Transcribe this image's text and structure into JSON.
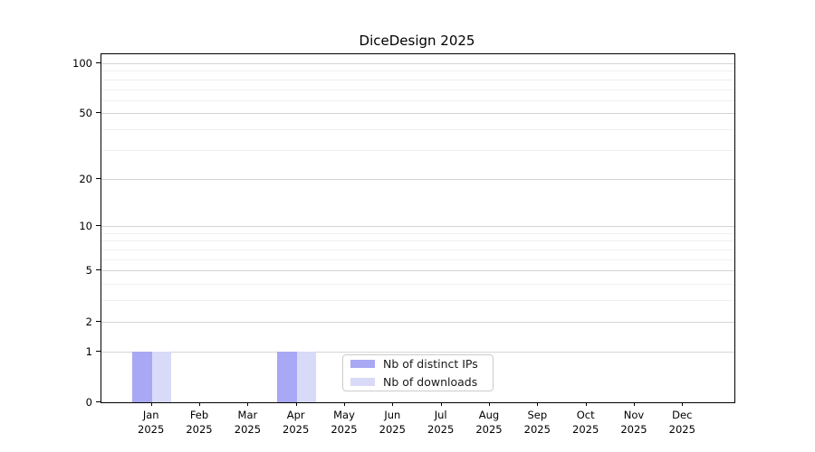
{
  "chart_data": {
    "type": "bar",
    "title": "DiceDesign 2025",
    "categories": [
      "Jan",
      "Feb",
      "Mar",
      "Apr",
      "May",
      "Jun",
      "Jul",
      "Aug",
      "Sep",
      "Oct",
      "Nov",
      "Dec"
    ],
    "x_year_label": "2025",
    "series": [
      {
        "name": "Nb of distinct IPs",
        "color": "#a8a8f4",
        "values": [
          1,
          0,
          0,
          1,
          0,
          0,
          0,
          0,
          0,
          0,
          0,
          0
        ]
      },
      {
        "name": "Nb of downloads",
        "color": "#d9d9f8",
        "values": [
          1,
          0,
          0,
          1,
          0,
          0,
          0,
          0,
          0,
          0,
          0,
          0
        ]
      }
    ],
    "xlabel": "",
    "ylabel": "",
    "y_scale": "log1p",
    "y_ticks": [
      0,
      1,
      2,
      5,
      10,
      20,
      50,
      100
    ],
    "y_minor_gridlines": [
      3,
      4,
      6,
      7,
      8,
      9,
      30,
      40,
      60,
      70,
      80,
      90
    ],
    "ylim": [
      0,
      113
    ],
    "grid": true,
    "legend_position": "lower center"
  }
}
